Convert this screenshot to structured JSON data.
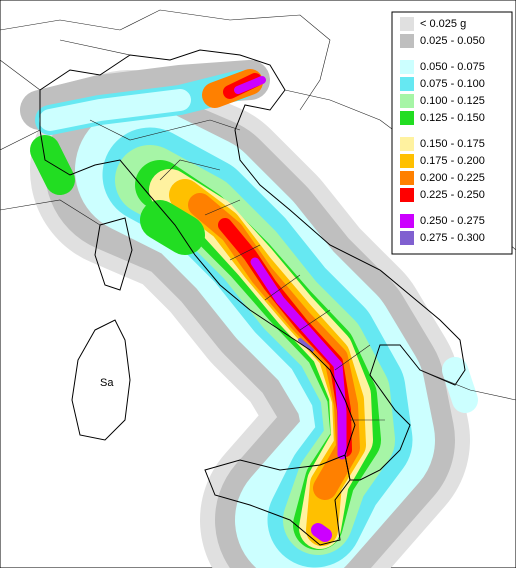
{
  "legend": {
    "items": [
      {
        "label": "< 0.025 g",
        "color": "#e0e0e0"
      },
      {
        "label": "0.025 - 0.050",
        "color": "#bfbfbf"
      },
      {
        "label": "0.050 - 0.075",
        "color": "#ccffff"
      },
      {
        "label": "0.075 - 0.100",
        "color": "#66e8f2"
      },
      {
        "label": "0.100 - 0.125",
        "color": "#a6f5a6"
      },
      {
        "label": "0.125 - 0.150",
        "color": "#22dd22"
      },
      {
        "label": "0.150 - 0.175",
        "color": "#fff2a0"
      },
      {
        "label": "0.175 - 0.200",
        "color": "#ffc000"
      },
      {
        "label": "0.200 - 0.225",
        "color": "#ff8000"
      },
      {
        "label": "0.225 - 0.250",
        "color": "#ff0000"
      },
      {
        "label": "0.250 - 0.275",
        "color": "#cc00ff"
      },
      {
        "label": "0.275 - 0.300",
        "color": "#8060d0"
      }
    ]
  },
  "map_labels": [
    "Sa"
  ]
}
